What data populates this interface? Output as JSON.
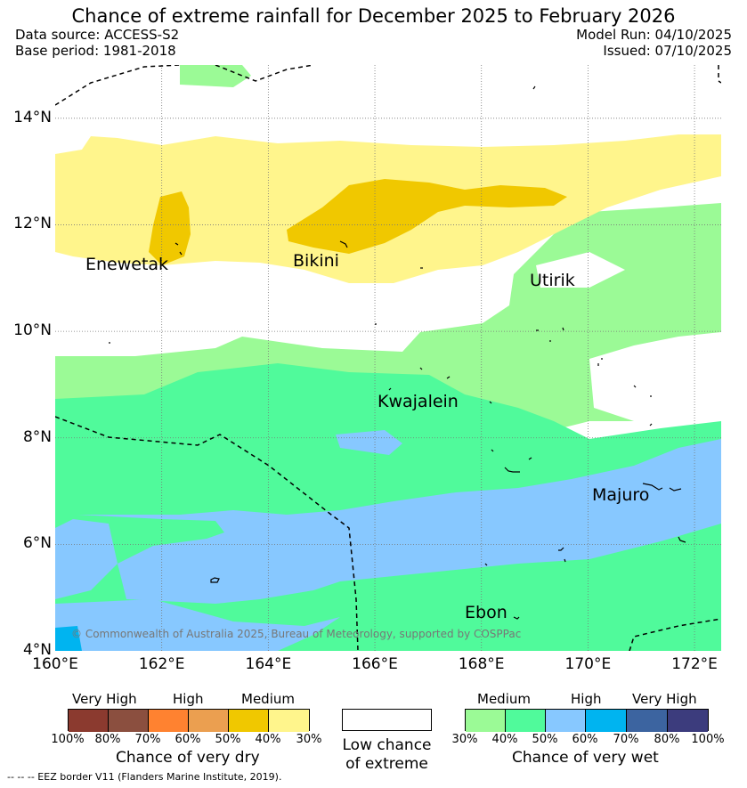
{
  "title": "Chance of extreme rainfall for December 2025 to February 2026",
  "meta": {
    "data_source": "Data source: ACCESS-S2",
    "base_period": "Base period: 1981-2018",
    "model_run": "Model Run: 04/10/2025",
    "issued": "Issued: 07/10/2025"
  },
  "axes": {
    "lat_ticks": [
      "14°N",
      "12°N",
      "10°N",
      "8°N",
      "6°N",
      "4°N"
    ],
    "lon_ticks": [
      "160°E",
      "162°E",
      "164°E",
      "166°E",
      "168°E",
      "170°E",
      "172°E"
    ]
  },
  "places": [
    "Enewetak",
    "Bikini",
    "Utirik",
    "Kwajalein",
    "Majuro",
    "Ebon"
  ],
  "copyright": "© Commonwealth of Australia 2025, Bureau of Meteorology, supported by COSPPac",
  "colors": {
    "very_high_dry_1": "#8b3a2f",
    "very_high_dry_2": "#8b4f3f",
    "high_dry_1": "#ff8230",
    "high_dry_2": "#eb9f50",
    "medium_dry_1": "#f0c800",
    "medium_dry_2": "#fff58c",
    "low": "#ffffff",
    "medium_wet_1": "#9bfa96",
    "medium_wet_2": "#50fa9b",
    "high_wet_1": "#87c8ff",
    "high_wet_2": "#00b4f0",
    "very_high_wet_1": "#3c64a0",
    "very_high_wet_2": "#3c3c7d",
    "eez": "#000000"
  },
  "legend": {
    "dry": {
      "categories": [
        "Very High",
        "High",
        "Medium"
      ],
      "ticks": [
        "100%",
        "80%",
        "70%",
        "60%",
        "50%",
        "40%",
        "30%"
      ],
      "title": "Chance of very dry"
    },
    "low": {
      "line1": "Low chance",
      "line2": "of extreme"
    },
    "wet": {
      "categories": [
        "Medium",
        "High",
        "Very High"
      ],
      "ticks": [
        "30%",
        "40%",
        "50%",
        "60%",
        "70%",
        "80%",
        "100%"
      ],
      "title": "Chance of very wet"
    },
    "eez_note": "-- -- -- EEZ border V11 (Flanders Marine Institute, 2019)."
  }
}
